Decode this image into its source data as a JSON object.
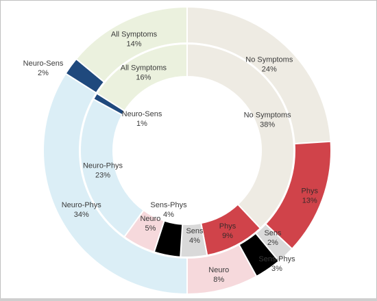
{
  "chart_data": {
    "type": "pie",
    "variant": "double-donut",
    "rings": [
      {
        "name": "",
        "position": "outer",
        "slices": [
          {
            "label": "No Symptoms",
            "value": 24,
            "display": "24%",
            "color": "#eeebe3"
          },
          {
            "label": "Phys",
            "value": 13,
            "display": "13%",
            "color": "#d0434a"
          },
          {
            "label": "Sens",
            "value": 2,
            "display": "2%",
            "color": "#d9d9d9"
          },
          {
            "label": "Sens-Phys",
            "value": 3,
            "display": "3%",
            "color": "#000000"
          },
          {
            "label": "Neuro",
            "value": 8,
            "display": "8%",
            "color": "#f6d9dc"
          },
          {
            "label": "Neuro-Phys",
            "value": 34,
            "display": "34%",
            "color": "#dbeef6"
          },
          {
            "label": "Neuro-Sens",
            "value": 2,
            "display": "2%",
            "color": "#1f497d"
          },
          {
            "label": "All Symptoms",
            "value": 14,
            "display": "14%",
            "color": "#ebf1de"
          }
        ]
      },
      {
        "name": "",
        "position": "inner",
        "slices": [
          {
            "label": "No Symptoms",
            "value": 38,
            "display": "38%",
            "color": "#eeebe3"
          },
          {
            "label": "Phys",
            "value": 9,
            "display": "9%",
            "color": "#d0434a"
          },
          {
            "label": "Sens",
            "value": 4,
            "display": "4%",
            "color": "#d9d9d9"
          },
          {
            "label": "Sens-Phys",
            "value": 4,
            "display": "4%",
            "color": "#000000"
          },
          {
            "label": "Neuro",
            "value": 5,
            "display": "5%",
            "color": "#f6d9dc"
          },
          {
            "label": "Neuro-Phys",
            "value": 23,
            "display": "23%",
            "color": "#dbeef6"
          },
          {
            "label": "Neuro-Sens",
            "value": 1,
            "display": "1%",
            "color": "#1f497d"
          },
          {
            "label": "All Symptoms",
            "value": 16,
            "display": "16%",
            "color": "#ebf1de"
          }
        ]
      }
    ],
    "title": "",
    "legend": "none",
    "labels": "on-slices"
  }
}
